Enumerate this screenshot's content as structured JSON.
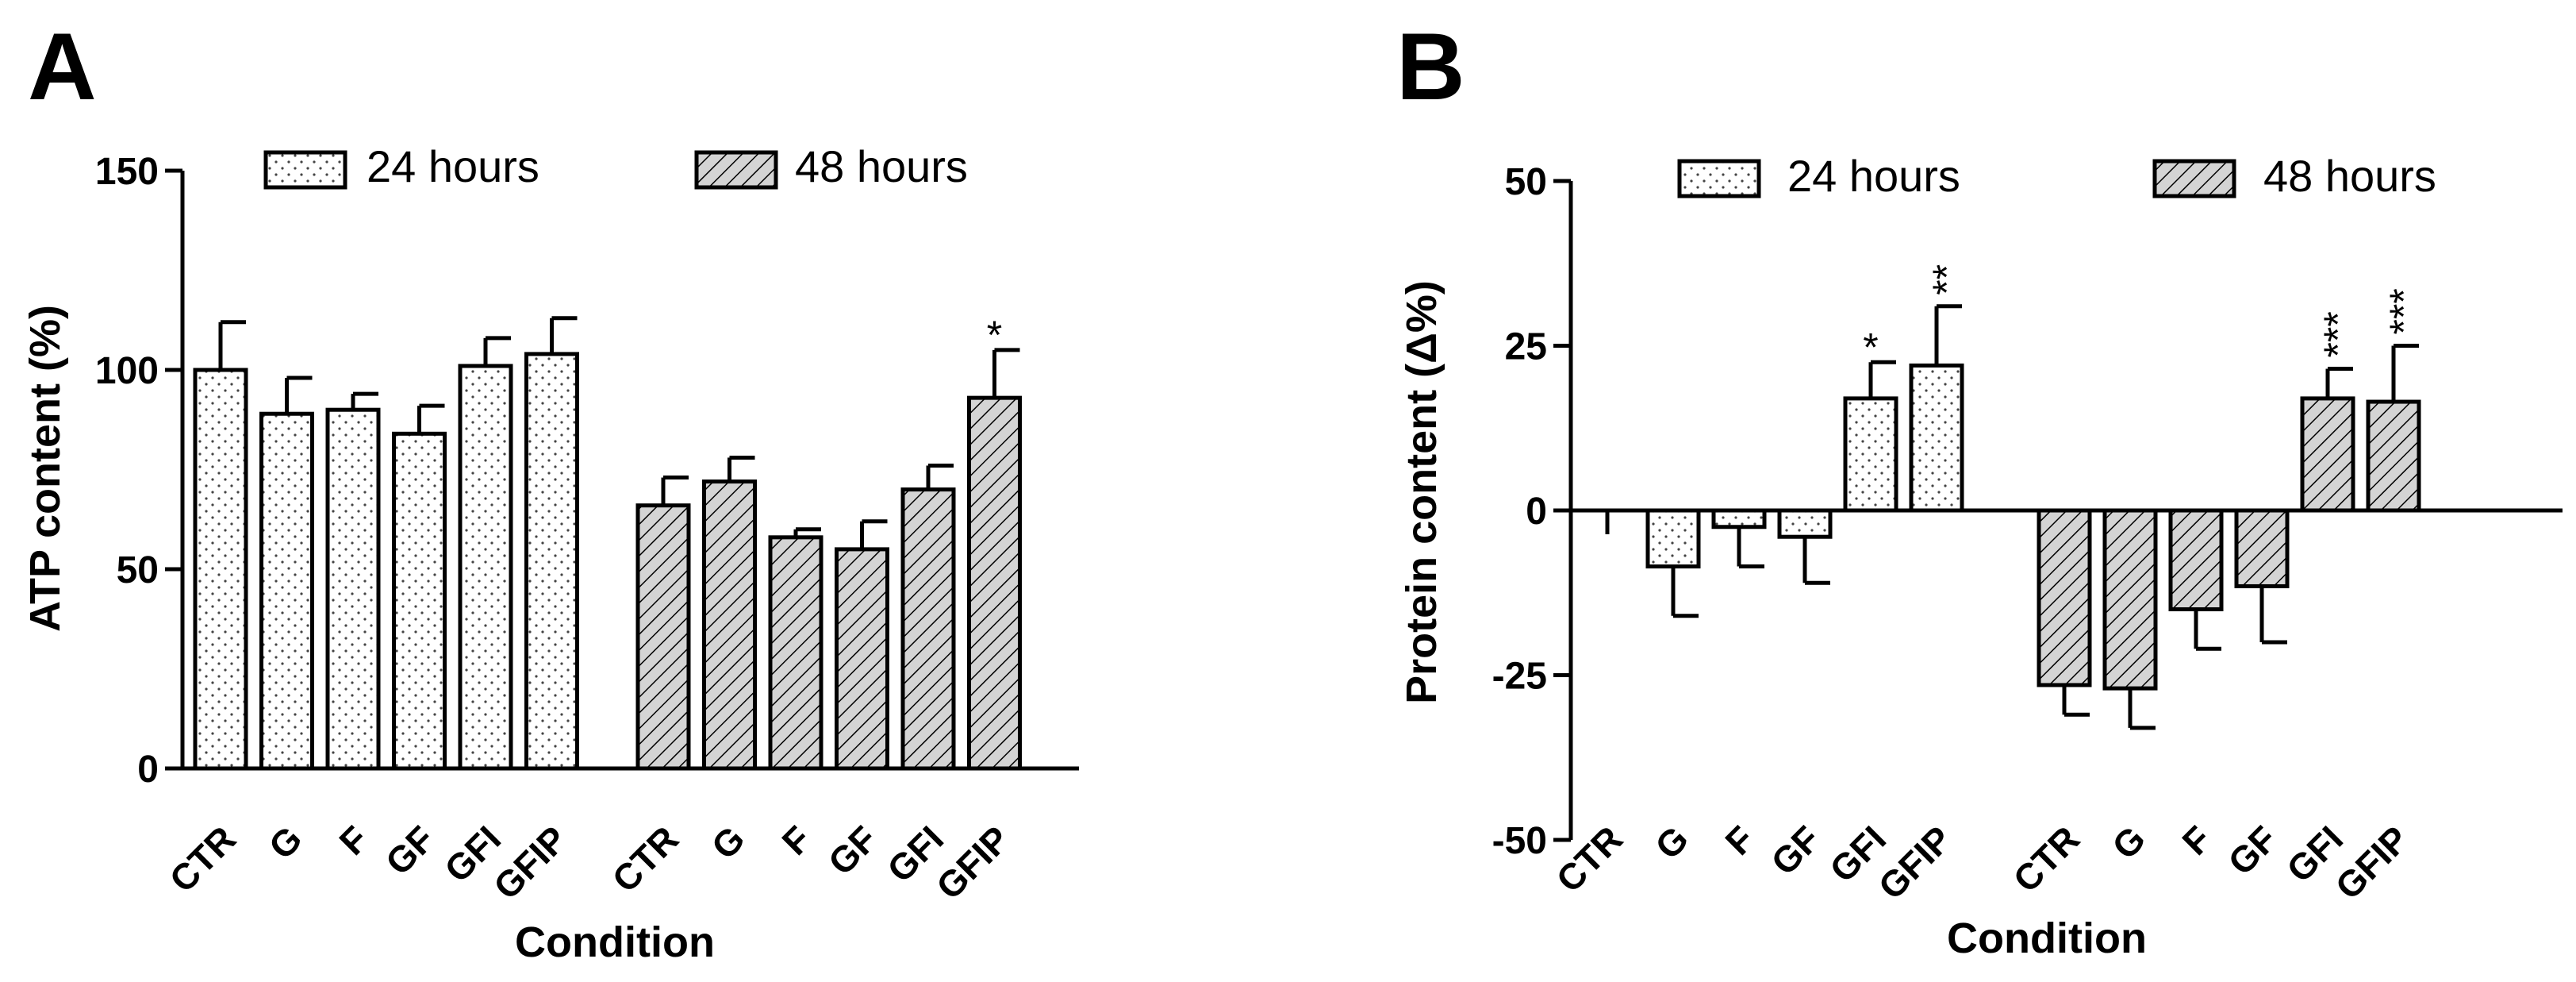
{
  "chart_data": [
    {
      "type": "bar",
      "panel": "A",
      "ylabel": "ATP content (%)",
      "xlabel": "Condition",
      "ylim": [
        0,
        150
      ],
      "yticks": [
        0,
        50,
        100,
        150
      ],
      "legend_position": "top",
      "series": [
        {
          "name": "24 hours",
          "pattern": "dots",
          "categories": [
            "CTR",
            "G",
            "F",
            "GF",
            "GFI",
            "GFIP"
          ],
          "values": [
            100,
            89,
            90,
            84,
            101,
            104
          ],
          "errors": [
            12,
            9,
            4,
            7,
            7,
            9
          ],
          "annotations": [
            "",
            "",
            "",
            "",
            "",
            ""
          ]
        },
        {
          "name": "48 hours",
          "pattern": "hatch",
          "categories": [
            "CTR",
            "G",
            "F",
            "GF",
            "GFI",
            "GFIP"
          ],
          "values": [
            66,
            72,
            58,
            55,
            70,
            93
          ],
          "errors": [
            7,
            6,
            2,
            7,
            6,
            12
          ],
          "annotations": [
            "",
            "",
            "",
            "",
            "",
            "*"
          ]
        }
      ]
    },
    {
      "type": "bar",
      "panel": "B",
      "ylabel": "Protein content (Δ%)",
      "xlabel": "Condition",
      "ylim": [
        -50,
        50
      ],
      "yticks": [
        -50,
        -25,
        0,
        25,
        50
      ],
      "legend_position": "top",
      "series": [
        {
          "name": "24 hours",
          "pattern": "dots",
          "categories": [
            "CTR",
            "G",
            "F",
            "GF",
            "GFI",
            "GFIP"
          ],
          "values": [
            0,
            -8.5,
            -2.5,
            -4,
            17,
            22
          ],
          "errors": [
            0,
            7.5,
            6,
            7,
            5.5,
            9
          ],
          "annotations": [
            "",
            "",
            "",
            "",
            "*",
            "**"
          ]
        },
        {
          "name": "48 hours",
          "pattern": "hatch",
          "categories": [
            "CTR",
            "G",
            "F",
            "GF",
            "GFI",
            "GFIP"
          ],
          "values": [
            -26.5,
            -27,
            -15,
            -11.5,
            17,
            16.5
          ],
          "errors": [
            4.5,
            6,
            6,
            8.5,
            4.5,
            8.5
          ],
          "annotations": [
            "",
            "",
            "",
            "",
            "***",
            "***"
          ]
        }
      ]
    }
  ]
}
